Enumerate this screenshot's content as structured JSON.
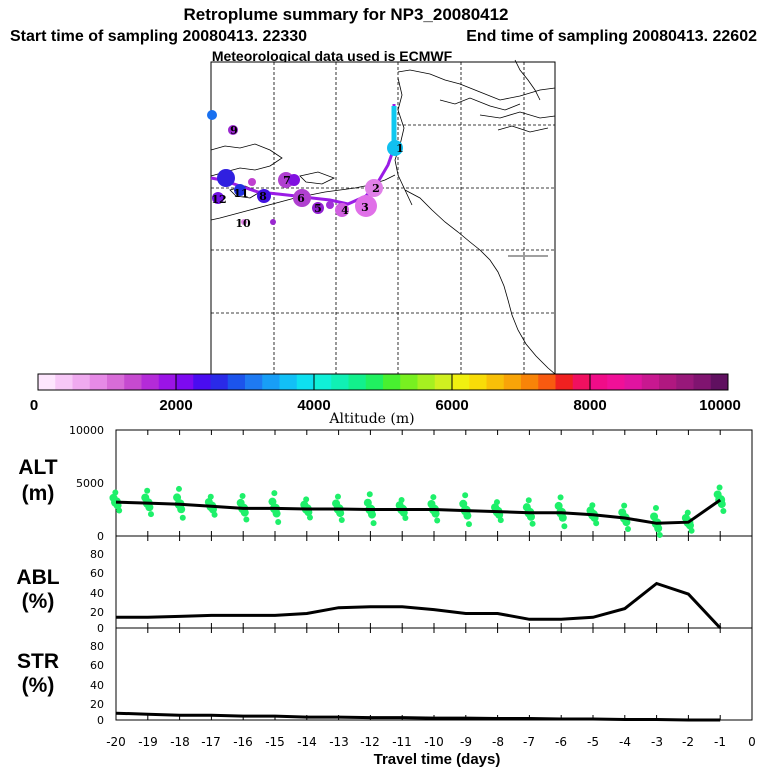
{
  "header": {
    "title": "Retroplume summary for NP3_20080412",
    "start_label": "Start time of sampling 20080413. 22330",
    "end_label": "End time of sampling 20080413. 22602",
    "met_label": "Meteorological data used is ECMWF"
  },
  "colorbar": {
    "label": "Altitude (m)",
    "tick_labels": [
      "0",
      "2000",
      "4000",
      "6000",
      "8000",
      "10000"
    ],
    "colors": [
      "#fde6fd",
      "#f7c8f7",
      "#efaaef",
      "#e68ae6",
      "#d86cd8",
      "#c64ad0",
      "#b42bd8",
      "#9b14e6",
      "#7d0af0",
      "#4a0cf0",
      "#2a2ae8",
      "#1c54ec",
      "#1e7af2",
      "#189ef6",
      "#12c0f6",
      "#0ee0f0",
      "#10f0d8",
      "#10f0b4",
      "#12f08c",
      "#20f060",
      "#48f030",
      "#78f020",
      "#a6f020",
      "#d0f020",
      "#f0f010",
      "#f8dc08",
      "#f8c008",
      "#f8a408",
      "#f88408",
      "#f85a10",
      "#f02020",
      "#f01060",
      "#f00c88",
      "#f01098",
      "#e014a0",
      "#c81890",
      "#b01880",
      "#98187a",
      "#801470",
      "#601060"
    ]
  },
  "map": {
    "numbered_labels": [
      {
        "text": "1"
      },
      {
        "text": "2"
      },
      {
        "text": "3"
      },
      {
        "text": "4"
      },
      {
        "text": "5"
      },
      {
        "text": "6"
      },
      {
        "text": "7"
      },
      {
        "text": "8"
      },
      {
        "text": "9"
      },
      {
        "text": "10"
      },
      {
        "text": "11"
      },
      {
        "text": "12"
      }
    ]
  },
  "panels": {
    "alt_label": "ALT\n(m)",
    "abl_label": "ABL\n(%)",
    "str_label": "STR\n(%)",
    "xlabel": "Travel time (days)",
    "alt_yticks": [
      "10000",
      "5000",
      "0"
    ],
    "pct_yticks": [
      "80",
      "60",
      "40",
      "20",
      "0"
    ],
    "xticks": [
      "-20",
      "-19",
      "-18",
      "-17",
      "-16",
      "-15",
      "-14",
      "-13",
      "-12",
      "-11",
      "-10",
      "-9",
      "-8",
      "-7",
      "-6",
      "-5",
      "-4",
      "-3",
      "-2",
      "-1",
      "0"
    ]
  },
  "chart_data": [
    {
      "type": "line",
      "name": "ALT",
      "title": "Altitude",
      "x": [
        -20,
        -19,
        -18,
        -17,
        -16,
        -15,
        -14,
        -13,
        -12,
        -11,
        -10,
        -9,
        -8,
        -7,
        -6,
        -5,
        -4,
        -3,
        -2,
        -1
      ],
      "values": [
        3200,
        3100,
        3000,
        2800,
        2600,
        2600,
        2550,
        2550,
        2500,
        2500,
        2500,
        2400,
        2300,
        2200,
        2200,
        2000,
        1700,
        1200,
        1300,
        3400
      ],
      "ylim": [
        0,
        10000
      ],
      "xlim": [
        -20,
        0
      ],
      "ylabel": "ALT (m)"
    },
    {
      "type": "line",
      "name": "ABL",
      "x": [
        -20,
        -19,
        -18,
        -17,
        -16,
        -15,
        -14,
        -13,
        -12,
        -11,
        -10,
        -9,
        -8,
        -7,
        -6,
        -5,
        -4,
        -3,
        -2,
        -1
      ],
      "values": [
        11,
        11,
        12,
        13,
        13,
        13,
        15,
        21,
        22,
        22,
        19,
        15,
        15,
        9,
        9,
        11,
        20,
        46,
        35,
        0
      ],
      "ylim": [
        0,
        95
      ],
      "xlim": [
        -20,
        0
      ],
      "ylabel": "ABL (%)"
    },
    {
      "type": "line",
      "name": "STR",
      "x": [
        -20,
        -19,
        -18,
        -17,
        -16,
        -15,
        -14,
        -13,
        -12,
        -11,
        -10,
        -9,
        -8,
        -7,
        -6,
        -5,
        -4,
        -3,
        -2,
        -1
      ],
      "values": [
        7,
        6,
        5,
        5,
        4,
        4,
        3,
        3,
        2.5,
        2.5,
        2,
        2,
        1.5,
        1.5,
        1,
        1,
        0.5,
        0.5,
        0,
        0
      ],
      "ylim": [
        0,
        95
      ],
      "xlim": [
        -20,
        0
      ],
      "ylabel": "STR (%)"
    }
  ]
}
